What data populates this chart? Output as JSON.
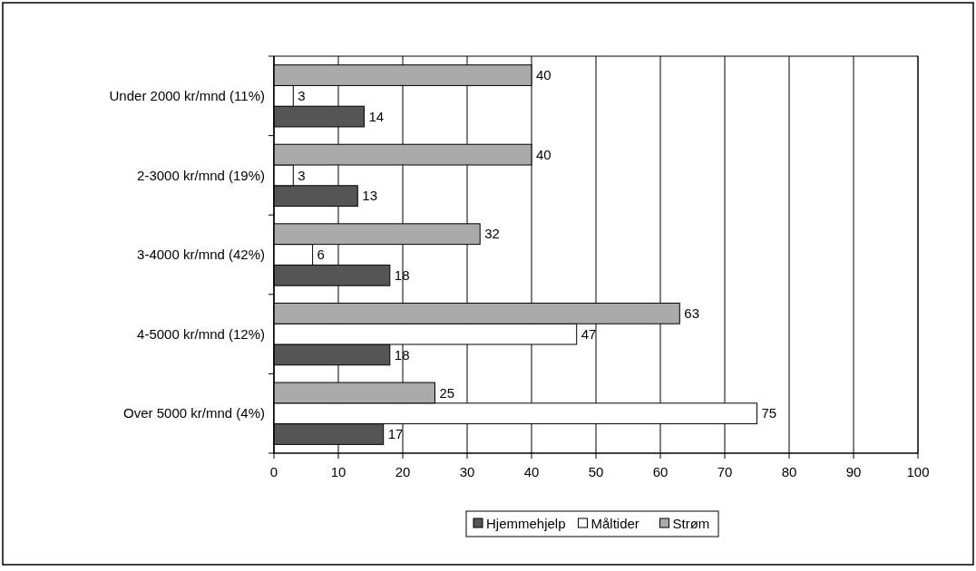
{
  "chart_data": {
    "type": "bar",
    "orientation": "horizontal",
    "categories": [
      "Under 2000 kr/mnd (11%)",
      "2-3000 kr/mnd (19%)",
      "3-4000 kr/mnd (42%)",
      "4-5000 kr/mnd (12%)",
      "Over 5000 kr/mnd (4%)"
    ],
    "series": [
      {
        "name": "Hjemmehjelp",
        "color": "#555555",
        "values": [
          14,
          13,
          18,
          18,
          17
        ]
      },
      {
        "name": "Måltider",
        "color": "#ffffff",
        "values": [
          3,
          3,
          6,
          47,
          75
        ]
      },
      {
        "name": "Strøm",
        "color": "#aaaaaa",
        "values": [
          40,
          40,
          32,
          63,
          25
        ]
      }
    ],
    "xlim": [
      0,
      100
    ],
    "xticks": [
      0,
      10,
      20,
      30,
      40,
      50,
      60,
      70,
      80,
      90,
      100
    ],
    "grid": "x",
    "legend": "bottom",
    "data_labels": true
  }
}
